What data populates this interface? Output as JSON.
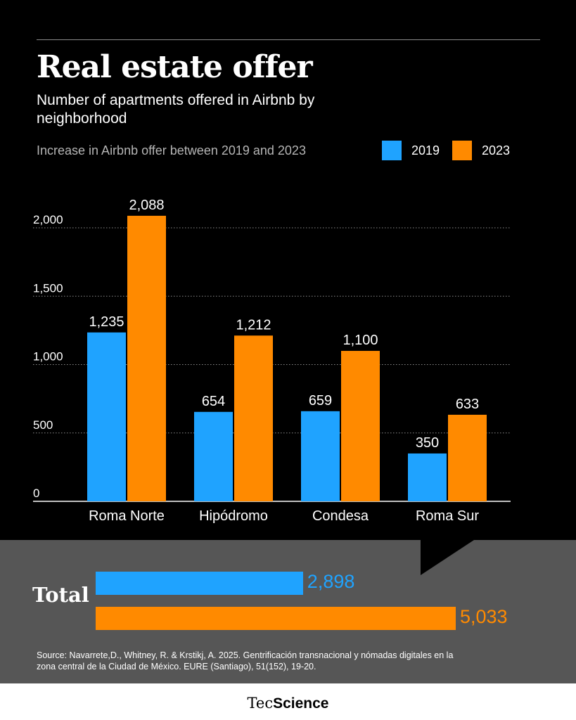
{
  "title": "Real estate offer",
  "subtitle": "Number of apartments offered in Airbnb by neighborhood",
  "note": "Increase in Airbnb offer between 2019 and 2023",
  "colors": {
    "s2019": "#1fa3ff",
    "s2023": "#ff8a00"
  },
  "chart_data": {
    "type": "bar",
    "title": "Real estate offer",
    "subtitle": "Number of apartments offered in Airbnb by neighborhood",
    "categories": [
      "Roma Norte",
      "Hipódromo",
      "Condesa",
      "Roma Sur"
    ],
    "series": [
      {
        "name": "2019",
        "values": [
          1235,
          654,
          659,
          350
        ],
        "labels": [
          "1,235",
          "654",
          "659",
          "350"
        ]
      },
      {
        "name": "2023",
        "values": [
          2088,
          1212,
          1100,
          633
        ],
        "labels": [
          "2,088",
          "1,212",
          "1,100",
          "633"
        ]
      }
    ],
    "ylim": [
      0,
      2000
    ],
    "yticks": [
      0,
      500,
      1000,
      1500,
      2000
    ],
    "ytick_labels": [
      "0",
      "500",
      "1,000",
      "1,500",
      "2,000"
    ],
    "grid": true,
    "legend": "top-right"
  },
  "totals": {
    "label": "Total",
    "items": [
      {
        "series": "2019",
        "value": 2898,
        "label": "2,898"
      },
      {
        "series": "2023",
        "value": 5033,
        "label": "5,033"
      }
    ]
  },
  "source": "Source: Navarrete,D., Whitney, R. & Krstikj, A. 2025. Gentrificación transnacional y nómadas digitales en la zona central de la Ciudad de México. EURE (Santiago), 51(152), 19-20.",
  "brand": {
    "part1": "Tec",
    "part2": "Science"
  }
}
